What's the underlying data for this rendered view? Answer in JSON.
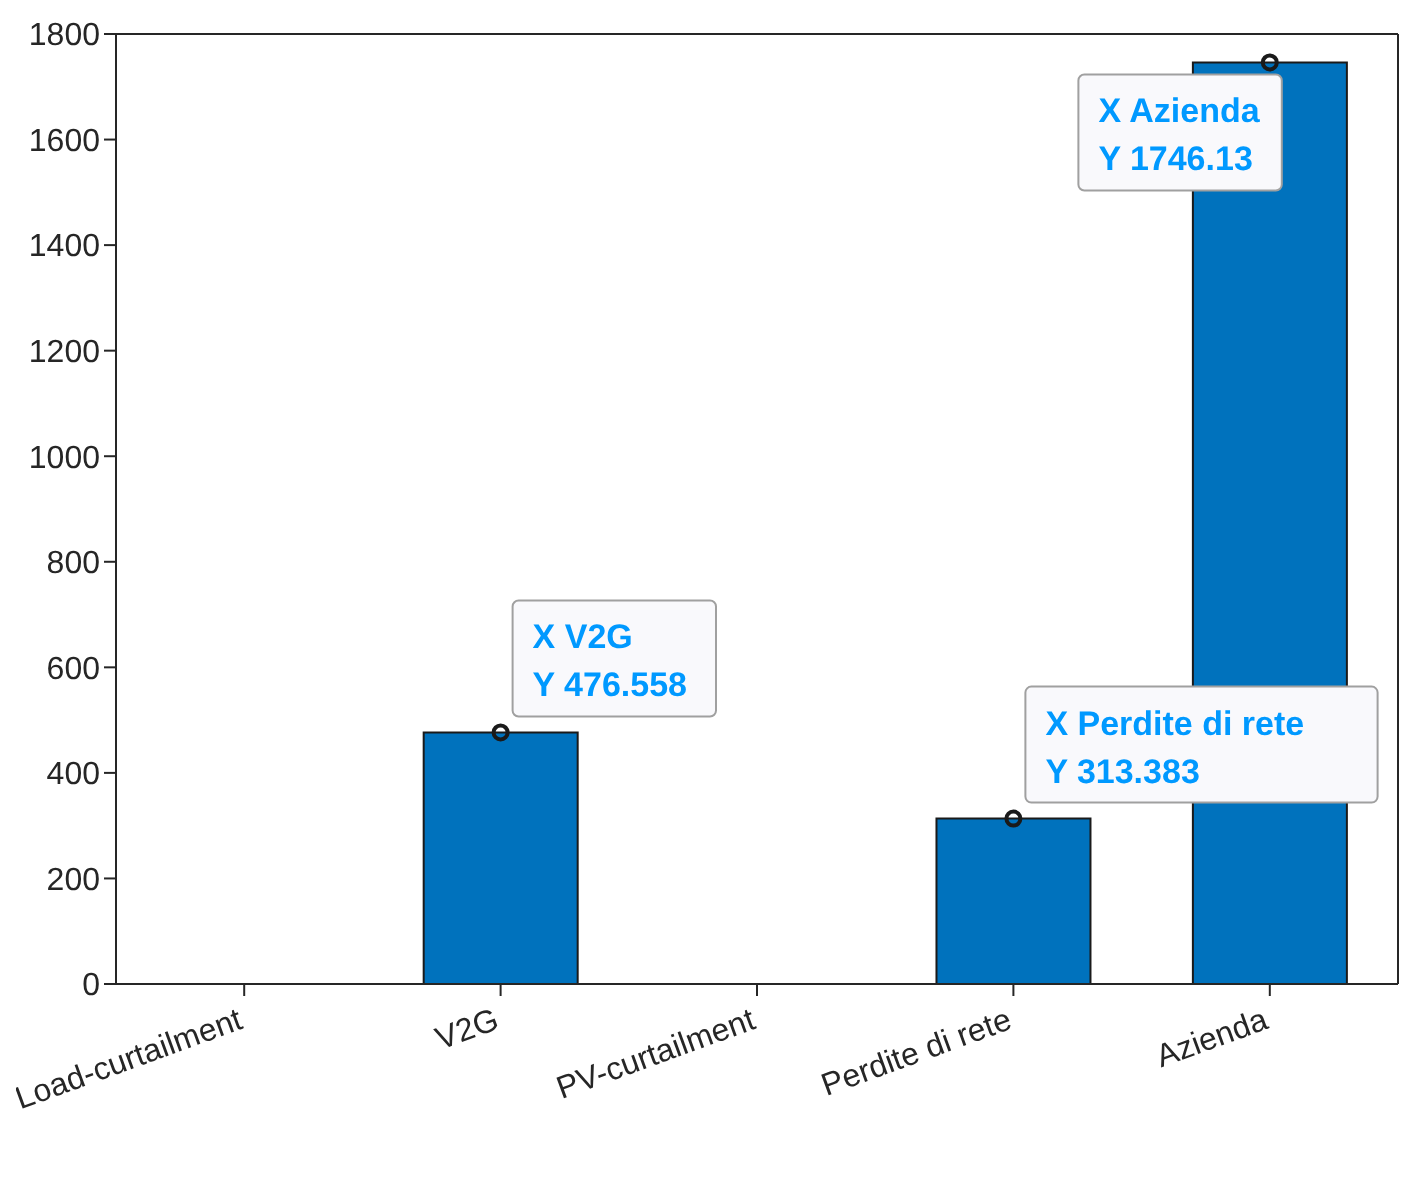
{
  "chart_data": {
    "type": "bar",
    "categories": [
      "Load-curtailment",
      "V2G",
      "PV-curtailment",
      "Perdite di rete",
      "Azienda"
    ],
    "values": [
      0,
      476.558,
      0,
      313.383,
      1746.13
    ],
    "color": "#0072bd",
    "ylim": [
      0,
      1800
    ],
    "yticks": [
      0,
      200,
      400,
      600,
      800,
      1000,
      1200,
      1400,
      1600,
      1800
    ],
    "grid": false,
    "legend": false,
    "annotations": [
      {
        "text": "X V2G",
        "x": "V2G",
        "y": 476.558
      },
      {
        "text": "Y 476.558",
        "x": "V2G",
        "y": 476.558
      },
      {
        "text": "X Perdite di rete",
        "x": "Perdite di rete",
        "y": 313.383
      },
      {
        "text": "Y 313.383",
        "x": "Perdite di rete",
        "y": 313.383
      },
      {
        "text": "X Azienda",
        "x": "Azienda",
        "y": 1746.13
      },
      {
        "text": "Y 1746.13",
        "x": "Azienda",
        "y": 1746.13
      }
    ]
  }
}
